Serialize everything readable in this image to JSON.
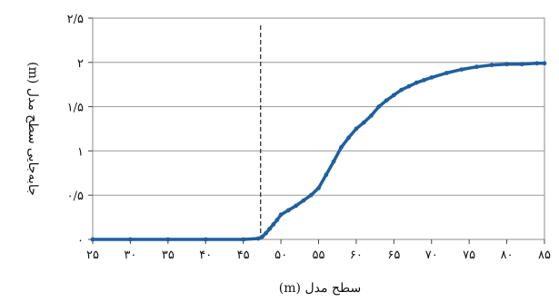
{
  "chart_data": {
    "type": "line",
    "title": "",
    "xlabel": "سطح مدل (m)",
    "ylabel": "جابه‌جایی سطح مدل (m)",
    "xlim": [
      25,
      85
    ],
    "ylim": [
      0,
      2.5
    ],
    "xticks": [
      25,
      30,
      35,
      40,
      45,
      50,
      55,
      60,
      65,
      70,
      75,
      80,
      85
    ],
    "yticks": [
      0,
      0.5,
      1,
      1.5,
      2,
      2.5
    ],
    "xtick_labels": [
      "۲۵",
      "۳۰",
      "۳۵",
      "۴۰",
      "۴۵",
      "۵۰",
      "۵۵",
      "۶۰",
      "۶۵",
      "۷۰",
      "۷۵",
      "۸۰",
      "۸۵"
    ],
    "ytick_labels": [
      "۰",
      "۰/۵",
      "۱",
      "۱/۵",
      "۲",
      "۲/۵"
    ],
    "grid": "horizontal",
    "vertical_marker_x": 47.3,
    "series": [
      {
        "color": "#1f5f9f",
        "x": [
          25,
          30,
          35,
          40,
          45,
          47,
          47.5,
          48,
          48.5,
          49,
          49.5,
          50,
          51,
          52,
          53,
          54,
          55,
          56,
          57,
          58,
          59,
          60,
          61,
          62,
          63,
          64,
          65,
          66,
          67,
          68,
          69,
          70,
          72,
          74,
          76,
          78,
          80,
          82,
          84,
          85
        ],
        "y": [
          0,
          0,
          0,
          0,
          0,
          0.01,
          0.03,
          0.07,
          0.12,
          0.17,
          0.22,
          0.28,
          0.33,
          0.38,
          0.44,
          0.5,
          0.58,
          0.73,
          0.88,
          1.04,
          1.15,
          1.25,
          1.32,
          1.4,
          1.5,
          1.57,
          1.63,
          1.69,
          1.73,
          1.77,
          1.8,
          1.83,
          1.88,
          1.92,
          1.95,
          1.97,
          1.98,
          1.98,
          1.99,
          1.99
        ]
      }
    ]
  }
}
